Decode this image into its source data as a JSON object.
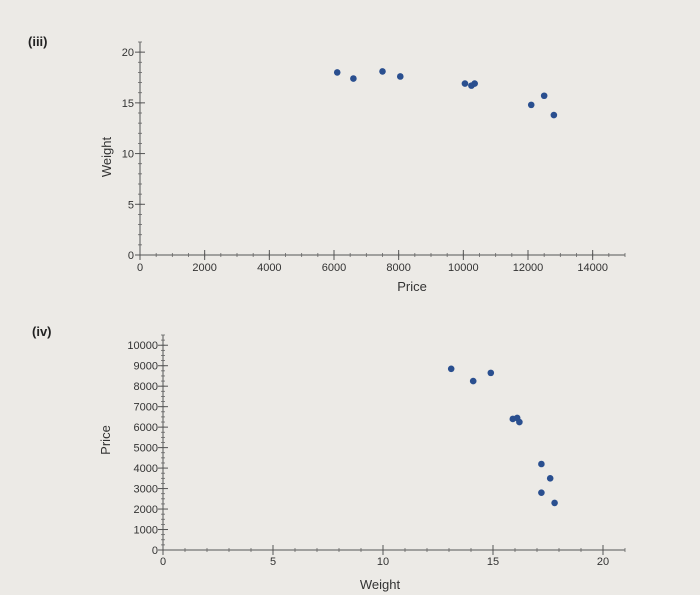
{
  "chart_data": [
    {
      "type": "scatter",
      "panel_label": "(iii)",
      "xlabel": "Price",
      "ylabel": "Weight",
      "xlim": [
        0,
        15000
      ],
      "ylim": [
        0,
        21
      ],
      "x_ticks": [
        0,
        2000,
        4000,
        6000,
        8000,
        10000,
        12000,
        14000
      ],
      "y_ticks": [
        0,
        5,
        10,
        15,
        20
      ],
      "x_tick_labels": [
        "0",
        "2000",
        "4000",
        "6000",
        "8000",
        "10000",
        "12000",
        "14000"
      ],
      "y_tick_labels": [
        "0",
        "5",
        "10",
        "15",
        "20"
      ],
      "grid": false,
      "color": "#2a4f8f",
      "points": [
        {
          "x": 6100,
          "y": 18.0
        },
        {
          "x": 6600,
          "y": 17.4
        },
        {
          "x": 7500,
          "y": 18.1
        },
        {
          "x": 8050,
          "y": 17.6
        },
        {
          "x": 10050,
          "y": 16.9
        },
        {
          "x": 10250,
          "y": 16.7
        },
        {
          "x": 10350,
          "y": 16.9
        },
        {
          "x": 12100,
          "y": 14.8
        },
        {
          "x": 12500,
          "y": 15.7
        },
        {
          "x": 12800,
          "y": 13.8
        }
      ]
    },
    {
      "type": "scatter",
      "panel_label": "(iv)",
      "xlabel": "Weight",
      "ylabel": "Price",
      "xlim": [
        0,
        21
      ],
      "ylim": [
        0,
        10500
      ],
      "x_ticks": [
        0,
        5,
        10,
        15,
        20
      ],
      "y_ticks": [
        0,
        1000,
        2000,
        3000,
        4000,
        5000,
        6000,
        7000,
        8000,
        9000,
        10000
      ],
      "x_tick_labels": [
        "0",
        "5",
        "10",
        "15",
        "20"
      ],
      "y_tick_labels": [
        "0",
        "1000",
        "2000",
        "3000",
        "4000",
        "5000",
        "6000",
        "7000",
        "8000",
        "9000",
        "10000"
      ],
      "grid": false,
      "color": "#2a4f8f",
      "points": [
        {
          "x": 13.1,
          "y": 8850
        },
        {
          "x": 14.1,
          "y": 8250
        },
        {
          "x": 14.9,
          "y": 8650
        },
        {
          "x": 15.9,
          "y": 6400
        },
        {
          "x": 16.1,
          "y": 6450
        },
        {
          "x": 16.2,
          "y": 6250
        },
        {
          "x": 17.2,
          "y": 4200
        },
        {
          "x": 17.6,
          "y": 3500
        },
        {
          "x": 17.2,
          "y": 2800
        },
        {
          "x": 17.8,
          "y": 2300
        }
      ]
    }
  ]
}
